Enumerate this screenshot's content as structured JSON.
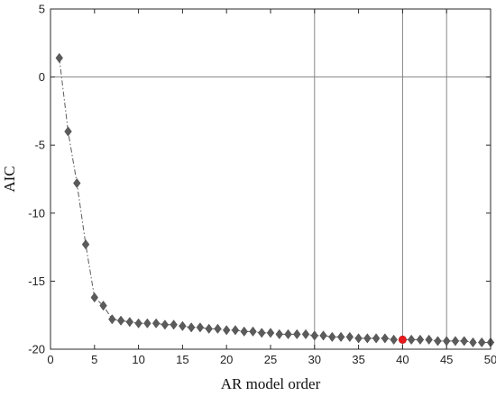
{
  "chart_data": {
    "type": "line",
    "title": "",
    "xlabel": "AR model order",
    "ylabel": "AIC",
    "xlim": [
      0,
      50
    ],
    "ylim": [
      -20,
      5
    ],
    "xticks": [
      0,
      5,
      10,
      15,
      20,
      25,
      30,
      35,
      40,
      45,
      50
    ],
    "yticks": [
      5,
      0,
      -5,
      -10,
      -15,
      -20
    ],
    "grid": false,
    "legend": "none",
    "marker": "diamond",
    "line_style": "dash-dot",
    "series": [
      {
        "x": [
          1,
          2,
          3,
          4,
          5,
          6,
          7,
          8,
          9,
          10,
          11,
          12,
          13,
          14,
          15,
          16,
          17,
          18,
          19,
          20,
          21,
          22,
          23,
          24,
          25,
          26,
          27,
          28,
          29,
          30,
          31,
          32,
          33,
          34,
          35,
          36,
          37,
          38,
          39,
          40,
          41,
          42,
          43,
          44,
          45,
          46,
          47,
          48,
          49,
          50
        ],
        "values": [
          1.4,
          -4.0,
          -7.8,
          -12.3,
          -16.2,
          -16.8,
          -17.8,
          -17.9,
          -18.0,
          -18.1,
          -18.1,
          -18.1,
          -18.2,
          -18.2,
          -18.3,
          -18.4,
          -18.4,
          -18.5,
          -18.5,
          -18.6,
          -18.6,
          -18.7,
          -18.7,
          -18.8,
          -18.8,
          -18.9,
          -18.9,
          -18.9,
          -18.9,
          -19.0,
          -19.0,
          -19.1,
          -19.1,
          -19.1,
          -19.2,
          -19.2,
          -19.2,
          -19.2,
          -19.3,
          -19.3,
          -19.3,
          -19.3,
          -19.3,
          -19.4,
          -19.4,
          -19.4,
          -19.4,
          -19.5,
          -19.5,
          -19.5
        ]
      }
    ],
    "reference_lines": {
      "horizontal": [
        0
      ],
      "vertical": [
        30,
        40,
        45
      ]
    },
    "highlight": {
      "x": 40,
      "y": -19.3
    },
    "colors": {
      "marker": "#5b5b5b",
      "line": "#5b5b5b",
      "highlight": "#e8191c",
      "reference": "#7a7a7a",
      "axes": "#2a2a2a"
    }
  }
}
